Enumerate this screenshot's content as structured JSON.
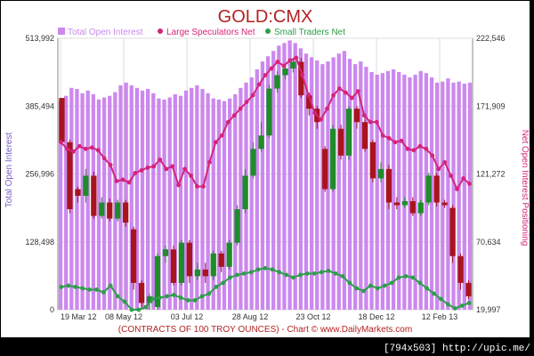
{
  "watermark": "[794x503] http://upic.me/",
  "colors": {
    "title": "#b22222",
    "total_oi": "#cc88ee",
    "large_spec": "#d4247a",
    "small_traders": "#2e9e4a",
    "candle_up": "#1e8c2a",
    "candle_down": "#a8141e",
    "footer": "#b22222",
    "axis_label": "#7a5cc8",
    "right_axis_label": "#d4247a"
  },
  "chart_data": {
    "type": "bar",
    "title": "GOLD:CMX",
    "legend": [
      {
        "name": "Total Open Interest",
        "marker": "square"
      },
      {
        "name": "Large Speculators Net",
        "marker": "dot"
      },
      {
        "name": "Small Traders Net",
        "marker": "dot"
      }
    ],
    "legend_position": "top",
    "ylabel_left": "Total Open Interest",
    "ylabel_right": "Net Open Interest Positioning",
    "footer": "(CONTRACTS OF 100 TROY OUNCES)  - Chart © www.DailyMarkets.com",
    "left_ticks": [
      "513,992",
      "385,494",
      "256,996",
      "128,498",
      "0"
    ],
    "right_ticks": [
      "222,546",
      "171,909",
      "121,272",
      "70,634",
      "19,997"
    ],
    "x_ticks": [
      "19 Mar 12",
      "08 May 12",
      "03 Jul 12",
      "28 Aug 12",
      "23 Oct 12",
      "18 Dec 12",
      "12 Feb 13"
    ],
    "left_ylim": [
      0,
      513992
    ],
    "right_ylim": [
      19997,
      222546
    ],
    "grid": true,
    "total_open_interest": [
      395000,
      405000,
      420000,
      418000,
      410000,
      415000,
      408000,
      398000,
      402000,
      405000,
      412000,
      425000,
      430000,
      425000,
      420000,
      415000,
      418000,
      410000,
      400000,
      398000,
      402000,
      408000,
      405000,
      415000,
      420000,
      425000,
      418000,
      410000,
      400000,
      398000,
      395000,
      400000,
      408000,
      420000,
      430000,
      440000,
      455000,
      470000,
      480000,
      490000,
      500000,
      505000,
      510000,
      505000,
      495000,
      485000,
      478000,
      472000,
      465000,
      470000,
      478000,
      485000,
      490000,
      475000,
      465000,
      470000,
      460000,
      450000,
      445000,
      448000,
      452000,
      455000,
      450000,
      445000,
      440000,
      445000,
      452000,
      448000,
      440000,
      430000,
      432000,
      438000,
      430000,
      432000,
      428000,
      430000
    ],
    "large_speculators_net": [
      145000,
      140000,
      138000,
      142000,
      140000,
      141000,
      139000,
      133000,
      128000,
      116000,
      117000,
      115000,
      122000,
      124000,
      126000,
      127000,
      132000,
      125000,
      127000,
      113000,
      125000,
      120000,
      112000,
      112000,
      130000,
      145000,
      150000,
      160000,
      165000,
      170000,
      175000,
      180000,
      188000,
      195000,
      200000,
      205000,
      202000,
      206000,
      208000,
      195000,
      180000,
      167000,
      162000,
      170000,
      180000,
      185000,
      182000,
      178000,
      183000,
      165000,
      160000,
      160000,
      150000,
      148000,
      145000,
      146000,
      140000,
      139000,
      142000,
      140000,
      135000,
      125000,
      130000,
      120000,
      110000,
      118000,
      114000
    ],
    "small_traders_net": [
      37000,
      38000,
      37000,
      36000,
      35000,
      35000,
      33000,
      38000,
      30000,
      26000,
      20000,
      20000,
      22000,
      28000,
      29000,
      30000,
      31000,
      29000,
      27000,
      27000,
      30000,
      32000,
      37000,
      40000,
      44000,
      46000,
      47000,
      48000,
      50000,
      51000,
      50000,
      48000,
      46000,
      44000,
      46000,
      47000,
      47000,
      48000,
      49000,
      47000,
      45000,
      40000,
      36000,
      34000,
      38000,
      36000,
      38000,
      40000,
      44000,
      45000,
      44000,
      40000,
      36000,
      32000,
      28000,
      24000,
      21000,
      23000,
      25000
    ],
    "candles": [
      [
        178000,
        145000,
        176000,
        143000
      ],
      [
        145000,
        95000,
        147000,
        92000
      ],
      [
        110000,
        105000,
        112000,
        100000
      ],
      [
        105000,
        120000,
        125000,
        100000
      ],
      [
        120000,
        90000,
        123000,
        88000
      ],
      [
        90000,
        100000,
        104000,
        88000
      ],
      [
        100000,
        88000,
        103000,
        86000
      ],
      [
        88000,
        100000,
        102000,
        86000
      ],
      [
        100000,
        85000,
        102000,
        82000
      ],
      [
        80000,
        40000,
        82000,
        35000
      ],
      [
        40000,
        25000,
        42000,
        22000
      ],
      [
        25000,
        30000,
        32000,
        20000
      ],
      [
        22000,
        60000,
        62000,
        20000
      ],
      [
        60000,
        65000,
        68000,
        55000
      ],
      [
        65000,
        40000,
        68000,
        38000
      ],
      [
        40000,
        70000,
        72000,
        38000
      ],
      [
        70000,
        45000,
        72000,
        40000
      ],
      [
        45000,
        50000,
        55000,
        42000
      ],
      [
        50000,
        45000,
        55000,
        40000
      ],
      [
        45000,
        62000,
        64000,
        42000
      ],
      [
        62000,
        52000,
        64000,
        48000
      ],
      [
        52000,
        70000,
        72000,
        50000
      ],
      [
        70000,
        95000,
        98000,
        68000
      ],
      [
        95000,
        120000,
        125000,
        92000
      ],
      [
        120000,
        140000,
        145000,
        118000
      ],
      [
        140000,
        150000,
        160000,
        138000
      ],
      [
        150000,
        185000,
        188000,
        148000
      ],
      [
        185000,
        195000,
        198000,
        182000
      ],
      [
        195000,
        200000,
        203000,
        192000
      ],
      [
        200000,
        205000,
        208000,
        197000
      ],
      [
        205000,
        180000,
        208000,
        178000
      ],
      [
        180000,
        170000,
        182000,
        165000
      ],
      [
        170000,
        160000,
        172000,
        155000
      ],
      [
        140000,
        110000,
        142000,
        108000
      ],
      [
        110000,
        155000,
        158000,
        108000
      ],
      [
        155000,
        135000,
        158000,
        132000
      ],
      [
        135000,
        170000,
        172000,
        132000
      ],
      [
        170000,
        160000,
        172000,
        155000
      ],
      [
        160000,
        140000,
        163000,
        138000
      ],
      [
        145000,
        118000,
        147000,
        115000
      ],
      [
        118000,
        125000,
        130000,
        115000
      ],
      [
        125000,
        100000,
        128000,
        95000
      ],
      [
        100000,
        98000,
        104000,
        95000
      ],
      [
        98000,
        101000,
        104000,
        96000
      ],
      [
        101000,
        92000,
        104000,
        90000
      ],
      [
        92000,
        100000,
        102000,
        90000
      ],
      [
        100000,
        120000,
        122000,
        98000
      ],
      [
        120000,
        100000,
        122000,
        97000
      ],
      [
        100000,
        98000,
        102000,
        96000
      ],
      [
        96000,
        60000,
        98000,
        55000
      ],
      [
        60000,
        40000,
        62000,
        35000
      ],
      [
        40000,
        30000,
        42000,
        28000
      ]
    ]
  }
}
